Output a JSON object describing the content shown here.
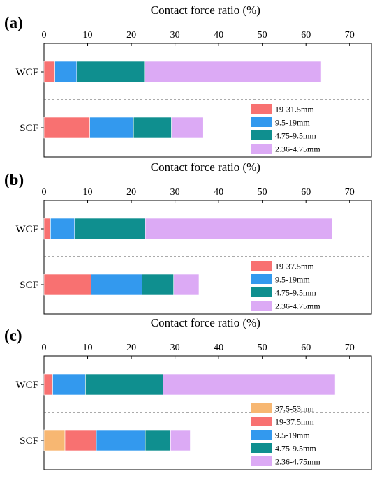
{
  "chart_data": [
    {
      "panel_label": "(a)",
      "type": "bar",
      "orientation": "horizontal",
      "stacked": true,
      "xlabel": "Contact force ratio (%)",
      "xlim": [
        0,
        75
      ],
      "ticks": [
        "0",
        "10",
        "20",
        "30",
        "40",
        "50",
        "60",
        "70"
      ],
      "categories": [
        "WCF",
        "SCF"
      ],
      "series": [
        {
          "name": "19-31.5mm",
          "color": "#f87171",
          "values": [
            2.5,
            10.5
          ]
        },
        {
          "name": "9.5-19mm",
          "color": "#3399ee",
          "values": [
            5.0,
            10.0
          ]
        },
        {
          "name": "4.75-9.5mm",
          "color": "#0f8f8f",
          "values": [
            15.5,
            8.7
          ]
        },
        {
          "name": "2.36-4.75mm",
          "color": "#dcaaf5",
          "values": [
            40.5,
            7.3
          ]
        }
      ]
    },
    {
      "panel_label": "(b)",
      "type": "bar",
      "orientation": "horizontal",
      "stacked": true,
      "xlabel": "Contact force ratio (%)",
      "xlim": [
        0,
        75
      ],
      "ticks": [
        "0",
        "10",
        "20",
        "30",
        "40",
        "50",
        "60",
        "70"
      ],
      "categories": [
        "WCF",
        "SCF"
      ],
      "series": [
        {
          "name": "19-37.5mm",
          "color": "#f87171",
          "values": [
            1.5,
            10.8
          ]
        },
        {
          "name": "9.5-19mm",
          "color": "#3399ee",
          "values": [
            5.5,
            11.7
          ]
        },
        {
          "name": "4.75-9.5mm",
          "color": "#0f8f8f",
          "values": [
            16.2,
            7.2
          ]
        },
        {
          "name": "2.36-4.75mm",
          "color": "#dcaaf5",
          "values": [
            42.8,
            5.8
          ]
        }
      ]
    },
    {
      "panel_label": "(c)",
      "type": "bar",
      "orientation": "horizontal",
      "stacked": true,
      "xlabel": "Contact force ratio (%)",
      "xlim": [
        0,
        75
      ],
      "ticks": [
        "0",
        "10",
        "20",
        "30",
        "40",
        "50",
        "60",
        "70"
      ],
      "categories": [
        "WCF",
        "SCF"
      ],
      "series": [
        {
          "name": "37.5-53mm",
          "color": "#f7b772",
          "values": [
            0,
            4.8
          ]
        },
        {
          "name": "19-37.5mm",
          "color": "#f87171",
          "values": [
            2.0,
            7.2
          ]
        },
        {
          "name": "9.5-19mm",
          "color": "#3399ee",
          "values": [
            7.5,
            11.2
          ]
        },
        {
          "name": "4.75-9.5mm",
          "color": "#0f8f8f",
          "values": [
            17.8,
            5.8
          ]
        },
        {
          "name": "2.36-4.75mm",
          "color": "#dcaaf5",
          "values": [
            39.4,
            4.5
          ]
        }
      ]
    }
  ]
}
